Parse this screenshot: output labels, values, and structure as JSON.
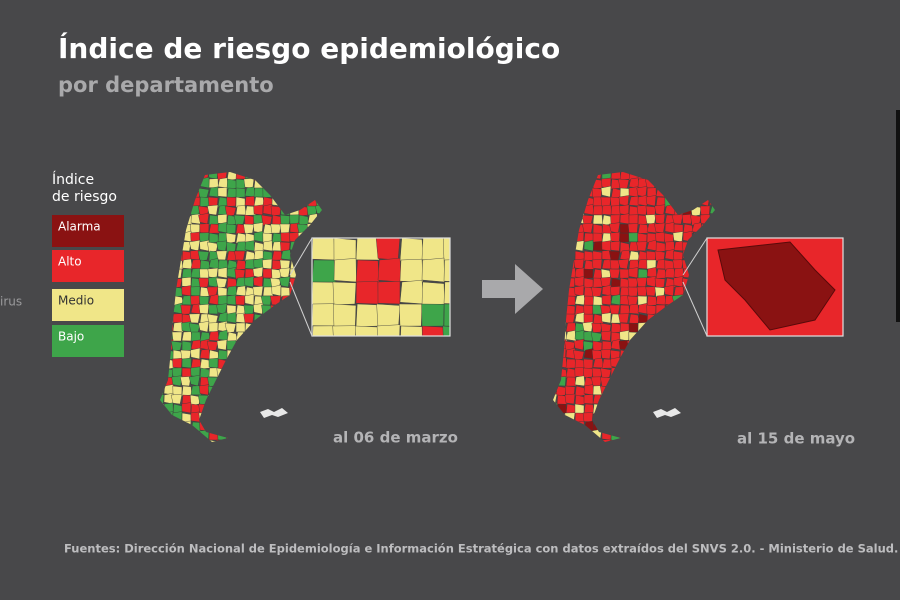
{
  "header": {
    "title": "Índice de riesgo epidemiológico",
    "subtitle": "por departamento"
  },
  "legend": {
    "title_lines": [
      "Índice",
      "de riesgo"
    ],
    "items": [
      {
        "label": "Alarma",
        "color": "#8a1212"
      },
      {
        "label": "Alto",
        "color": "#e8262a"
      },
      {
        "label": "Medio",
        "color": "#f0e688"
      },
      {
        "label": "Bajo",
        "color": "#3ea54a"
      }
    ]
  },
  "maps": [
    {
      "label": "al 06 de marzo"
    },
    {
      "label": "al 15 de mayo"
    }
  ],
  "side_fragment": "irus",
  "source": "Fuentes: Dirección Nacional de Epidemiología e Información Estratégica con datos extraídos del SNVS 2.0. - Ministerio de Salud."
}
